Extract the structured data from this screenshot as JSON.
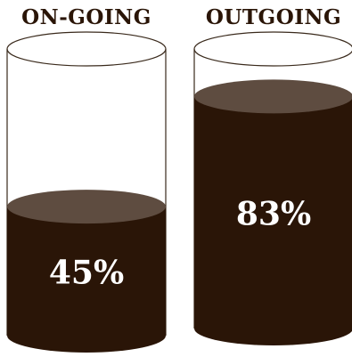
{
  "chart_data": {
    "type": "bar",
    "style": "cylinder-fill",
    "categories": [
      "ON-GOING",
      "OUTGOING"
    ],
    "values": [
      45,
      83
    ],
    "value_labels": [
      "45%",
      "83%"
    ],
    "unit": "%",
    "ylim": [
      0,
      100
    ],
    "grid": false,
    "legend": "none",
    "colors": {
      "fill": "#2a1507",
      "fill_top": "#5e4c40",
      "outline": "#3a2a1c",
      "title_text": "#2a1507",
      "value_text": "#ffffff",
      "background": "#ffffff"
    }
  }
}
